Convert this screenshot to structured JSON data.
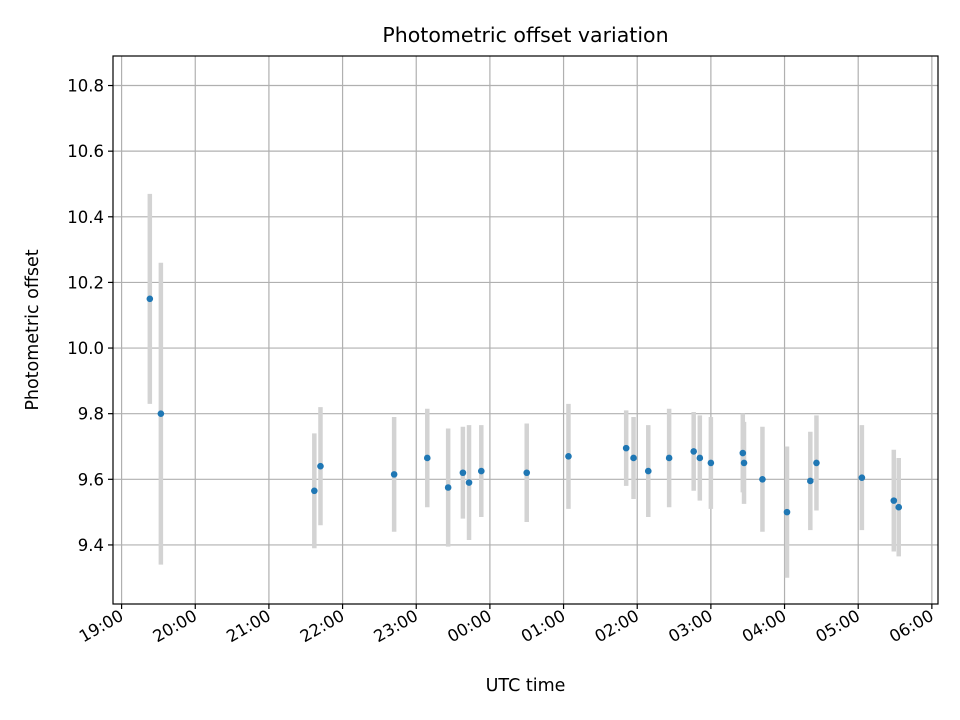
{
  "chart_data": {
    "type": "scatter",
    "title": "Photometric offset variation",
    "xlabel": "UTC time",
    "ylabel": "Photometric offset",
    "x_axis_type": "time",
    "x_tick_labels": [
      "19:00",
      "20:00",
      "21:00",
      "22:00",
      "23:00",
      "00:00",
      "01:00",
      "02:00",
      "03:00",
      "04:00",
      "05:00",
      "06:00"
    ],
    "y_tick_labels": [
      "9.4",
      "9.6",
      "9.8",
      "10.0",
      "10.2",
      "10.4",
      "10.6",
      "10.8"
    ],
    "y_ticks": [
      9.4,
      9.6,
      9.8,
      10.0,
      10.2,
      10.4,
      10.6,
      10.8
    ],
    "ylim": [
      9.22,
      10.89
    ],
    "xlim": [
      "18:53",
      "06:05"
    ],
    "grid": true,
    "colors": {
      "points": "#1f77b4",
      "error_bars": "#d3d3d3",
      "grid": "#b0b0b0"
    },
    "series": [
      {
        "points": [
          {
            "time": "19:23",
            "value": 10.15,
            "error": 0.32
          },
          {
            "time": "19:32",
            "value": 9.8,
            "error": 0.46
          },
          {
            "time": "21:37",
            "value": 9.565,
            "error": 0.175
          },
          {
            "time": "21:42",
            "value": 9.64,
            "error": 0.18
          },
          {
            "time": "22:42",
            "value": 9.615,
            "error": 0.175
          },
          {
            "time": "23:09",
            "value": 9.665,
            "error": 0.15
          },
          {
            "time": "23:26",
            "value": 9.575,
            "error": 0.18
          },
          {
            "time": "23:38",
            "value": 9.62,
            "error": 0.14
          },
          {
            "time": "23:43",
            "value": 9.59,
            "error": 0.175
          },
          {
            "time": "23:53",
            "value": 9.625,
            "error": 0.14
          },
          {
            "time": "00:30",
            "value": 9.62,
            "error": 0.15
          },
          {
            "time": "01:04",
            "value": 9.67,
            "error": 0.16
          },
          {
            "time": "01:51",
            "value": 9.695,
            "error": 0.115
          },
          {
            "time": "01:57",
            "value": 9.665,
            "error": 0.125
          },
          {
            "time": "02:09",
            "value": 9.625,
            "error": 0.14
          },
          {
            "time": "02:26",
            "value": 9.665,
            "error": 0.15
          },
          {
            "time": "02:46",
            "value": 9.685,
            "error": 0.12
          },
          {
            "time": "02:51",
            "value": 9.665,
            "error": 0.13
          },
          {
            "time": "03:00",
            "value": 9.65,
            "error": 0.14
          },
          {
            "time": "03:26",
            "value": 9.68,
            "error": 0.12
          },
          {
            "time": "03:27",
            "value": 9.65,
            "error": 0.125
          },
          {
            "time": "03:42",
            "value": 9.6,
            "error": 0.16
          },
          {
            "time": "04:02",
            "value": 9.5,
            "error": 0.2
          },
          {
            "time": "04:21",
            "value": 9.595,
            "error": 0.15
          },
          {
            "time": "04:26",
            "value": 9.65,
            "error": 0.145
          },
          {
            "time": "05:03",
            "value": 9.605,
            "error": 0.16
          },
          {
            "time": "05:29",
            "value": 9.535,
            "error": 0.155
          },
          {
            "time": "05:33",
            "value": 9.515,
            "error": 0.15
          }
        ]
      }
    ]
  }
}
